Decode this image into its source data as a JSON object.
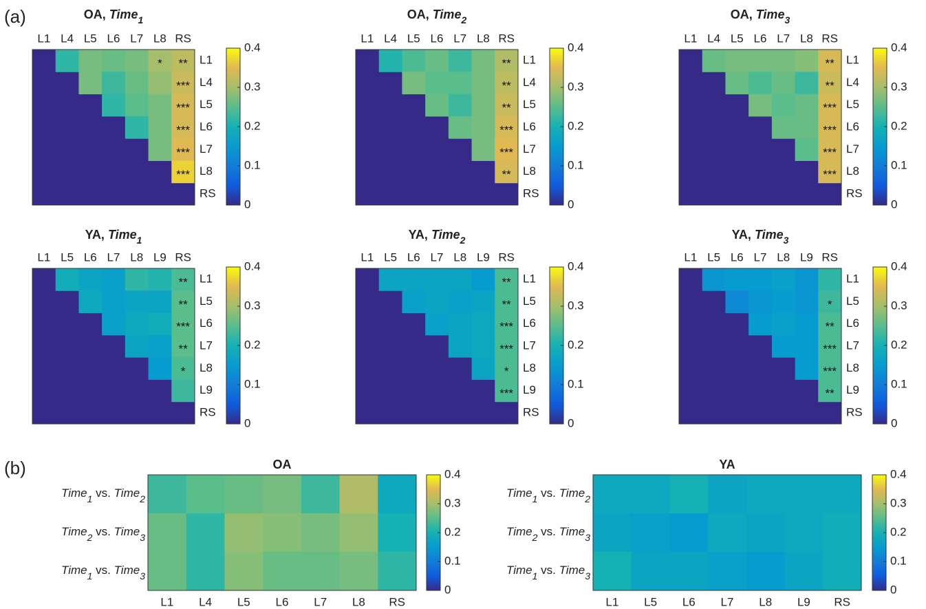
{
  "panels": [
    "(a)",
    "(b)"
  ],
  "chart_data": [
    {
      "type": "heatmap",
      "title": [
        "OA, ",
        "Time",
        "1"
      ],
      "x": [
        "L1",
        "L4",
        "L5",
        "L6",
        "L7",
        "L8",
        "RS"
      ],
      "y": [
        "L1",
        "L4",
        "L5",
        "L6",
        "L7",
        "L8",
        "RS"
      ],
      "values": [
        [
          null,
          0.22,
          0.27,
          0.26,
          0.27,
          0.3,
          0.32
        ],
        [
          null,
          null,
          0.27,
          0.23,
          0.26,
          0.29,
          0.33
        ],
        [
          null,
          null,
          null,
          0.22,
          0.25,
          0.27,
          0.34
        ],
        [
          null,
          null,
          null,
          null,
          0.22,
          0.27,
          0.34
        ],
        [
          null,
          null,
          null,
          null,
          null,
          0.27,
          0.35
        ],
        [
          null,
          null,
          null,
          null,
          null,
          null,
          0.37
        ],
        [
          null,
          null,
          null,
          null,
          null,
          null,
          null
        ]
      ],
      "labels": [
        [
          null,
          null,
          null,
          null,
          null,
          "*",
          "**"
        ],
        [
          null,
          null,
          null,
          null,
          null,
          null,
          "***"
        ],
        [
          null,
          null,
          null,
          null,
          null,
          null,
          "***"
        ],
        [
          null,
          null,
          null,
          null,
          null,
          null,
          "***"
        ],
        [
          null,
          null,
          null,
          null,
          null,
          null,
          "***"
        ],
        [
          null,
          null,
          null,
          null,
          null,
          null,
          "***"
        ],
        [
          null,
          null,
          null,
          null,
          null,
          null,
          null
        ]
      ],
      "clim": [
        0,
        0.4
      ],
      "cticks": [
        0,
        0.1,
        0.2,
        0.3,
        0.4
      ],
      "colormap": "parula"
    },
    {
      "type": "heatmap",
      "title": [
        "OA, ",
        "Time",
        "2"
      ],
      "x": [
        "L1",
        "L4",
        "L5",
        "L6",
        "L7",
        "L8",
        "RS"
      ],
      "y": [
        "L1",
        "L4",
        "L5",
        "L6",
        "L7",
        "L8",
        "RS"
      ],
      "values": [
        [
          null,
          0.21,
          0.24,
          0.26,
          0.23,
          0.27,
          0.31
        ],
        [
          null,
          null,
          0.27,
          0.25,
          0.25,
          0.27,
          0.32
        ],
        [
          null,
          null,
          null,
          0.26,
          0.23,
          0.27,
          0.33
        ],
        [
          null,
          null,
          null,
          null,
          0.26,
          0.27,
          0.34
        ],
        [
          null,
          null,
          null,
          null,
          null,
          0.27,
          0.35
        ],
        [
          null,
          null,
          null,
          null,
          null,
          null,
          0.34
        ],
        [
          null,
          null,
          null,
          null,
          null,
          null,
          null
        ]
      ],
      "labels": [
        [
          null,
          null,
          null,
          null,
          null,
          null,
          "**"
        ],
        [
          null,
          null,
          null,
          null,
          null,
          null,
          "**"
        ],
        [
          null,
          null,
          null,
          null,
          null,
          null,
          "**"
        ],
        [
          null,
          null,
          null,
          null,
          null,
          null,
          "***"
        ],
        [
          null,
          null,
          null,
          null,
          null,
          null,
          "***"
        ],
        [
          null,
          null,
          null,
          null,
          null,
          null,
          "**"
        ],
        [
          null,
          null,
          null,
          null,
          null,
          null,
          null
        ]
      ],
      "clim": [
        0,
        0.4
      ],
      "cticks": [
        0,
        0.1,
        0.2,
        0.3,
        0.4
      ],
      "colormap": "parula"
    },
    {
      "type": "heatmap",
      "title": [
        "OA, ",
        "Time",
        "3"
      ],
      "x": [
        "L1",
        "L4",
        "L5",
        "L6",
        "L7",
        "L8",
        "RS"
      ],
      "y": [
        "L1",
        "L4",
        "L5",
        "L6",
        "L7",
        "L8",
        "RS"
      ],
      "values": [
        [
          null,
          0.26,
          0.27,
          0.27,
          0.27,
          0.28,
          0.34
        ],
        [
          null,
          null,
          0.26,
          0.24,
          0.26,
          0.23,
          0.33
        ],
        [
          null,
          null,
          null,
          0.27,
          0.25,
          0.26,
          0.34
        ],
        [
          null,
          null,
          null,
          null,
          0.26,
          0.26,
          0.34
        ],
        [
          null,
          null,
          null,
          null,
          null,
          0.25,
          0.34
        ],
        [
          null,
          null,
          null,
          null,
          null,
          null,
          0.34
        ],
        [
          null,
          null,
          null,
          null,
          null,
          null,
          null
        ]
      ],
      "labels": [
        [
          null,
          null,
          null,
          null,
          null,
          null,
          "**"
        ],
        [
          null,
          null,
          null,
          null,
          null,
          null,
          "**"
        ],
        [
          null,
          null,
          null,
          null,
          null,
          null,
          "***"
        ],
        [
          null,
          null,
          null,
          null,
          null,
          null,
          "***"
        ],
        [
          null,
          null,
          null,
          null,
          null,
          null,
          "***"
        ],
        [
          null,
          null,
          null,
          null,
          null,
          null,
          "***"
        ],
        [
          null,
          null,
          null,
          null,
          null,
          null,
          null
        ]
      ],
      "clim": [
        0,
        0.4
      ],
      "cticks": [
        0,
        0.1,
        0.2,
        0.3,
        0.4
      ],
      "colormap": "parula"
    },
    {
      "type": "heatmap",
      "title": [
        "YA, ",
        "Time",
        "1"
      ],
      "x": [
        "L1",
        "L5",
        "L6",
        "L7",
        "L8",
        "L9",
        "RS"
      ],
      "y": [
        "L1",
        "L5",
        "L6",
        "L7",
        "L8",
        "L9",
        "RS"
      ],
      "values": [
        [
          null,
          0.19,
          0.17,
          0.16,
          0.22,
          0.21,
          0.24
        ],
        [
          null,
          null,
          0.18,
          0.16,
          0.17,
          0.17,
          0.25
        ],
        [
          null,
          null,
          null,
          0.16,
          0.18,
          0.19,
          0.25
        ],
        [
          null,
          null,
          null,
          null,
          0.17,
          0.16,
          0.25
        ],
        [
          null,
          null,
          null,
          null,
          null,
          0.15,
          0.24
        ],
        [
          null,
          null,
          null,
          null,
          null,
          null,
          0.23
        ],
        [
          null,
          null,
          null,
          null,
          null,
          null,
          null
        ]
      ],
      "labels": [
        [
          null,
          null,
          null,
          null,
          null,
          null,
          "**"
        ],
        [
          null,
          null,
          null,
          null,
          null,
          null,
          "**"
        ],
        [
          null,
          null,
          null,
          null,
          null,
          null,
          "***"
        ],
        [
          null,
          null,
          null,
          null,
          null,
          null,
          "**"
        ],
        [
          null,
          null,
          null,
          null,
          null,
          null,
          "*"
        ],
        [
          null,
          null,
          null,
          null,
          null,
          null,
          null
        ],
        [
          null,
          null,
          null,
          null,
          null,
          null,
          null
        ]
      ],
      "clim": [
        0,
        0.4
      ],
      "cticks": [
        0,
        0.1,
        0.2,
        0.3,
        0.4
      ],
      "colormap": "parula"
    },
    {
      "type": "heatmap",
      "title": [
        "YA, ",
        "Time",
        "2"
      ],
      "x": [
        "L1",
        "L5",
        "L6",
        "L7",
        "L8",
        "L9",
        "RS"
      ],
      "y": [
        "L1",
        "L5",
        "L6",
        "L7",
        "L8",
        "L9",
        "RS"
      ],
      "values": [
        [
          null,
          0.17,
          0.17,
          0.17,
          0.17,
          0.15,
          0.24
        ],
        [
          null,
          null,
          0.16,
          0.17,
          0.16,
          0.17,
          0.24
        ],
        [
          null,
          null,
          null,
          0.16,
          0.17,
          0.18,
          0.24
        ],
        [
          null,
          null,
          null,
          null,
          0.17,
          0.18,
          0.24
        ],
        [
          null,
          null,
          null,
          null,
          null,
          0.17,
          0.24
        ],
        [
          null,
          null,
          null,
          null,
          null,
          null,
          0.24
        ],
        [
          null,
          null,
          null,
          null,
          null,
          null,
          null
        ]
      ],
      "labels": [
        [
          null,
          null,
          null,
          null,
          null,
          null,
          "**"
        ],
        [
          null,
          null,
          null,
          null,
          null,
          null,
          "**"
        ],
        [
          null,
          null,
          null,
          null,
          null,
          null,
          "***"
        ],
        [
          null,
          null,
          null,
          null,
          null,
          null,
          "***"
        ],
        [
          null,
          null,
          null,
          null,
          null,
          null,
          "*"
        ],
        [
          null,
          null,
          null,
          null,
          null,
          null,
          "***"
        ],
        [
          null,
          null,
          null,
          null,
          null,
          null,
          null
        ]
      ],
      "clim": [
        0,
        0.4
      ],
      "cticks": [
        0,
        0.1,
        0.2,
        0.3,
        0.4
      ],
      "colormap": "parula"
    },
    {
      "type": "heatmap",
      "title": [
        "YA, ",
        "Time",
        "3"
      ],
      "x": [
        "L1",
        "L5",
        "L6",
        "L7",
        "L8",
        "L9",
        "RS"
      ],
      "y": [
        "L1",
        "L5",
        "L6",
        "L7",
        "L8",
        "L9",
        "RS"
      ],
      "values": [
        [
          null,
          0.14,
          0.15,
          0.15,
          0.16,
          0.14,
          0.22
        ],
        [
          null,
          null,
          0.12,
          0.14,
          0.15,
          0.14,
          0.23
        ],
        [
          null,
          null,
          null,
          0.15,
          0.16,
          0.15,
          0.24
        ],
        [
          null,
          null,
          null,
          null,
          0.15,
          0.15,
          0.24
        ],
        [
          null,
          null,
          null,
          null,
          null,
          0.15,
          0.24
        ],
        [
          null,
          null,
          null,
          null,
          null,
          null,
          0.24
        ],
        [
          null,
          null,
          null,
          null,
          null,
          null,
          null
        ]
      ],
      "labels": [
        [
          null,
          null,
          null,
          null,
          null,
          null,
          null
        ],
        [
          null,
          null,
          null,
          null,
          null,
          null,
          "*"
        ],
        [
          null,
          null,
          null,
          null,
          null,
          null,
          "**"
        ],
        [
          null,
          null,
          null,
          null,
          null,
          null,
          "***"
        ],
        [
          null,
          null,
          null,
          null,
          null,
          null,
          "***"
        ],
        [
          null,
          null,
          null,
          null,
          null,
          null,
          "**"
        ],
        [
          null,
          null,
          null,
          null,
          null,
          null,
          null
        ]
      ],
      "clim": [
        0,
        0.4
      ],
      "cticks": [
        0,
        0.1,
        0.2,
        0.3,
        0.4
      ],
      "colormap": "parula"
    },
    {
      "type": "heatmap",
      "title": [
        "OA"
      ],
      "x": [
        "L1",
        "L4",
        "L5",
        "L6",
        "L7",
        "L8",
        "RS"
      ],
      "y": [
        [
          "Time",
          "1",
          " vs. ",
          "Time",
          "2"
        ],
        [
          "Time",
          "2",
          " vs. ",
          "Time",
          "3"
        ],
        [
          "Time",
          "1",
          " vs. ",
          "Time",
          "3"
        ]
      ],
      "values": [
        [
          0.23,
          0.25,
          0.26,
          0.27,
          0.23,
          0.31,
          0.18
        ],
        [
          0.26,
          0.22,
          0.29,
          0.28,
          0.27,
          0.29,
          0.2
        ],
        [
          0.26,
          0.22,
          0.28,
          0.26,
          0.26,
          0.27,
          0.22
        ]
      ],
      "clim": [
        0,
        0.4
      ],
      "cticks": [
        0,
        0.1,
        0.2,
        0.3,
        0.4
      ],
      "colormap": "parula"
    },
    {
      "type": "heatmap",
      "title": [
        "YA"
      ],
      "x": [
        "L1",
        "L5",
        "L6",
        "L7",
        "L8",
        "L9",
        "RS"
      ],
      "y": [
        [
          "Time",
          "1",
          " vs. ",
          "Time",
          "2"
        ],
        [
          "Time",
          "2",
          " vs. ",
          "Time",
          "3"
        ],
        [
          "Time",
          "1",
          " vs. ",
          "Time",
          "3"
        ]
      ],
      "values": [
        [
          0.18,
          0.18,
          0.2,
          0.17,
          0.18,
          0.18,
          0.18
        ],
        [
          0.17,
          0.16,
          0.15,
          0.18,
          0.17,
          0.18,
          0.19
        ],
        [
          0.2,
          0.17,
          0.17,
          0.16,
          0.15,
          0.17,
          0.19
        ]
      ],
      "clim": [
        0,
        0.4
      ],
      "cticks": [
        0,
        0.1,
        0.2,
        0.3,
        0.4
      ],
      "colormap": "parula"
    }
  ]
}
